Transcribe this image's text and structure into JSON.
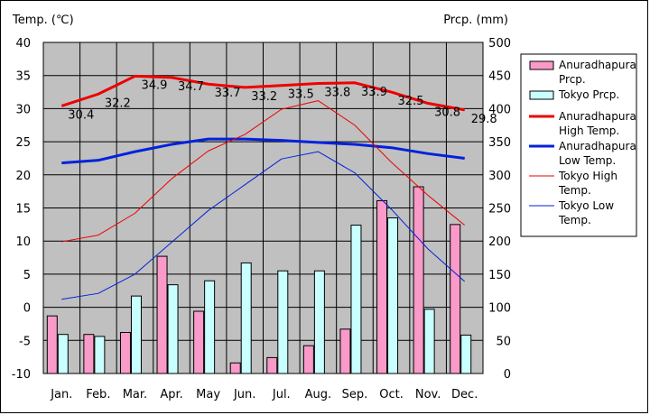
{
  "chart_data": {
    "type": "bar+line",
    "left_axis_title": "Temp. (℃)",
    "right_axis_title": "Prcp. (mm)",
    "categories": [
      "Jan.",
      "Feb.",
      "Mar.",
      "Apr.",
      "May",
      "Jun.",
      "Jul.",
      "Aug.",
      "Sep.",
      "Oct.",
      "Nov.",
      "Dec."
    ],
    "ylim_left": [
      -10,
      40
    ],
    "ylim_right": [
      0,
      500
    ],
    "y_ticks_left": [
      "40",
      "35",
      "30",
      "25",
      "20",
      "15",
      "10",
      "5",
      "0",
      "-5",
      "-10"
    ],
    "y_ticks_right": [
      "500",
      "450",
      "400",
      "350",
      "300",
      "250",
      "200",
      "150",
      "100",
      "50",
      "0"
    ],
    "grid": true,
    "legend_position": "right",
    "bar_series": [
      {
        "name": "Anuradhapura Prcp.",
        "color": "#f99ac8",
        "axis": "right",
        "values": [
          87,
          59,
          62,
          177,
          94,
          16,
          24,
          42,
          67,
          261,
          282,
          225
        ]
      },
      {
        "name": "Tokyo Prcp.",
        "color": "#c8ffff",
        "axis": "right",
        "values": [
          59,
          56,
          117,
          134,
          140,
          167,
          155,
          155,
          224,
          235,
          97,
          58
        ]
      }
    ],
    "line_series": [
      {
        "name": "Anuradhapura High Temp.",
        "color": "#ee0000",
        "width": 3,
        "axis": "left",
        "values": [
          30.4,
          32.2,
          34.9,
          34.7,
          33.7,
          33.2,
          33.5,
          33.8,
          33.9,
          32.5,
          30.8,
          29.8
        ],
        "labels": [
          "30.4",
          "32.2",
          "34.9",
          "34.7",
          "33.7",
          "33.2",
          "33.5",
          "33.8",
          "33.9",
          "32.5",
          "30.8",
          "29.8"
        ]
      },
      {
        "name": "Anuradhapura Low Temp.",
        "color": "#0022dd",
        "width": 3,
        "axis": "left",
        "values": [
          21.8,
          22.2,
          23.5,
          24.6,
          25.4,
          25.4,
          25.2,
          24.9,
          24.6,
          24.1,
          23.2,
          22.5
        ]
      },
      {
        "name": "Tokyo High Temp.",
        "color": "#ee0000",
        "width": 1,
        "axis": "left",
        "values": [
          9.9,
          10.9,
          14.2,
          19.4,
          23.6,
          26.1,
          29.9,
          31.2,
          27.5,
          21.9,
          16.9,
          12.4
        ]
      },
      {
        "name": "Tokyo Low Temp.",
        "color": "#0022dd",
        "width": 1,
        "axis": "left",
        "values": [
          1.2,
          2.1,
          5.0,
          9.8,
          14.6,
          18.5,
          22.4,
          23.5,
          20.3,
          14.8,
          8.8,
          3.9
        ]
      }
    ],
    "legend_entries": [
      {
        "label": [
          "Anuradhapura",
          "Prcp."
        ],
        "kind": "box",
        "color": "#f99ac8"
      },
      {
        "label": [
          "Tokyo Prcp."
        ],
        "kind": "box",
        "color": "#c8ffff"
      },
      {
        "label": [
          "Anuradhapura",
          "High Temp."
        ],
        "kind": "line",
        "color": "#ee0000",
        "width": 3
      },
      {
        "label": [
          "Anuradhapura",
          "Low Temp."
        ],
        "kind": "line",
        "color": "#0022dd",
        "width": 3
      },
      {
        "label": [
          "Tokyo High",
          "Temp."
        ],
        "kind": "line",
        "color": "#ee0000",
        "width": 1
      },
      {
        "label": [
          "Tokyo Low",
          "Temp."
        ],
        "kind": "line",
        "color": "#0022dd",
        "width": 1
      }
    ],
    "plot_background": "#c0c0c0"
  }
}
